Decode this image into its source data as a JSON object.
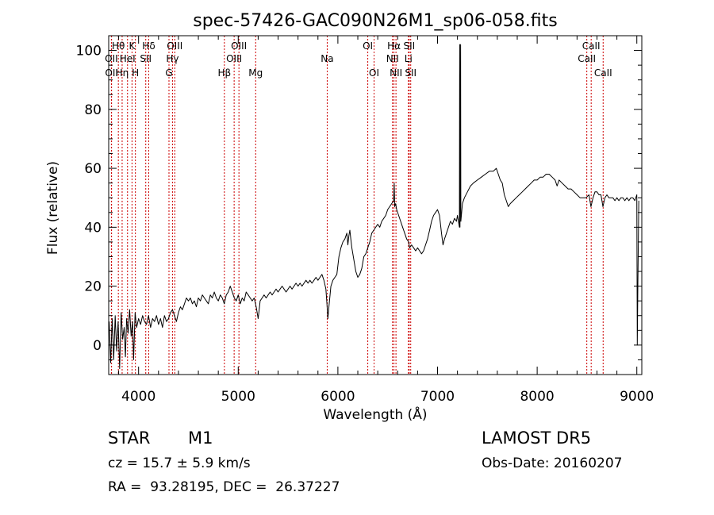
{
  "chart_data": {
    "type": "line",
    "title": "spec-57426-GAC090N26M1_sp06-058.fits",
    "xlabel": "Wavelength (Å)",
    "ylabel": "Flux (relative)",
    "xlim": [
      3700,
      9050
    ],
    "ylim": [
      -10,
      105
    ],
    "xticks": [
      4000,
      5000,
      6000,
      7000,
      8000,
      9000
    ],
    "yticks": [
      0,
      20,
      40,
      60,
      80,
      100
    ],
    "grid": false,
    "line_color": "#000000",
    "marker_color": "#cc0000",
    "spectrum_points": [
      [
        3705,
        8
      ],
      [
        3720,
        -6
      ],
      [
        3735,
        9
      ],
      [
        3750,
        -5
      ],
      [
        3765,
        10
      ],
      [
        3780,
        -2
      ],
      [
        3795,
        8
      ],
      [
        3810,
        -8
      ],
      [
        3825,
        11
      ],
      [
        3840,
        2
      ],
      [
        3855,
        6
      ],
      [
        3868,
        -4
      ],
      [
        3880,
        9
      ],
      [
        3895,
        4
      ],
      [
        3910,
        12
      ],
      [
        3925,
        3
      ],
      [
        3940,
        8
      ],
      [
        3950,
        -5
      ],
      [
        3965,
        11
      ],
      [
        3980,
        6
      ],
      [
        4000,
        9
      ],
      [
        4020,
        7
      ],
      [
        4040,
        10
      ],
      [
        4060,
        8
      ],
      [
        4080,
        7
      ],
      [
        4100,
        10
      ],
      [
        4120,
        6
      ],
      [
        4140,
        9
      ],
      [
        4160,
        8
      ],
      [
        4180,
        10
      ],
      [
        4200,
        7
      ],
      [
        4220,
        9
      ],
      [
        4240,
        6
      ],
      [
        4260,
        10
      ],
      [
        4280,
        8
      ],
      [
        4300,
        9
      ],
      [
        4320,
        11
      ],
      [
        4340,
        12
      ],
      [
        4360,
        10
      ],
      [
        4380,
        8
      ],
      [
        4400,
        11
      ],
      [
        4420,
        13
      ],
      [
        4440,
        12
      ],
      [
        4460,
        14
      ],
      [
        4480,
        16
      ],
      [
        4500,
        15
      ],
      [
        4520,
        16
      ],
      [
        4540,
        14
      ],
      [
        4560,
        15
      ],
      [
        4580,
        13
      ],
      [
        4600,
        16
      ],
      [
        4620,
        15
      ],
      [
        4640,
        17
      ],
      [
        4660,
        16
      ],
      [
        4680,
        15
      ],
      [
        4700,
        14
      ],
      [
        4720,
        17
      ],
      [
        4740,
        16
      ],
      [
        4760,
        18
      ],
      [
        4780,
        16
      ],
      [
        4800,
        15
      ],
      [
        4820,
        17
      ],
      [
        4840,
        16
      ],
      [
        4860,
        14
      ],
      [
        4880,
        17
      ],
      [
        4900,
        18
      ],
      [
        4920,
        20
      ],
      [
        4940,
        18
      ],
      [
        4960,
        16
      ],
      [
        4980,
        15
      ],
      [
        5000,
        17
      ],
      [
        5020,
        14
      ],
      [
        5040,
        16
      ],
      [
        5060,
        15
      ],
      [
        5080,
        18
      ],
      [
        5100,
        17
      ],
      [
        5120,
        16
      ],
      [
        5140,
        15
      ],
      [
        5160,
        16
      ],
      [
        5180,
        13
      ],
      [
        5200,
        9
      ],
      [
        5210,
        12
      ],
      [
        5220,
        15
      ],
      [
        5240,
        16
      ],
      [
        5260,
        17
      ],
      [
        5280,
        16
      ],
      [
        5300,
        17
      ],
      [
        5320,
        18
      ],
      [
        5340,
        17
      ],
      [
        5360,
        18
      ],
      [
        5380,
        19
      ],
      [
        5400,
        18
      ],
      [
        5420,
        19
      ],
      [
        5440,
        20
      ],
      [
        5460,
        19
      ],
      [
        5480,
        18
      ],
      [
        5500,
        19
      ],
      [
        5520,
        20
      ],
      [
        5540,
        19
      ],
      [
        5560,
        20
      ],
      [
        5580,
        21
      ],
      [
        5600,
        20
      ],
      [
        5620,
        21
      ],
      [
        5640,
        20
      ],
      [
        5660,
        21
      ],
      [
        5680,
        22
      ],
      [
        5700,
        21
      ],
      [
        5720,
        22
      ],
      [
        5740,
        21
      ],
      [
        5760,
        22
      ],
      [
        5780,
        23
      ],
      [
        5800,
        22
      ],
      [
        5820,
        23
      ],
      [
        5840,
        24
      ],
      [
        5860,
        22
      ],
      [
        5880,
        19
      ],
      [
        5890,
        14
      ],
      [
        5900,
        9
      ],
      [
        5910,
        13
      ],
      [
        5930,
        20
      ],
      [
        5950,
        22
      ],
      [
        5970,
        23
      ],
      [
        5990,
        24
      ],
      [
        6010,
        30
      ],
      [
        6030,
        33
      ],
      [
        6050,
        35
      ],
      [
        6070,
        36
      ],
      [
        6090,
        38
      ],
      [
        6100,
        34
      ],
      [
        6110,
        37
      ],
      [
        6120,
        39
      ],
      [
        6130,
        36
      ],
      [
        6140,
        33
      ],
      [
        6160,
        29
      ],
      [
        6180,
        25
      ],
      [
        6200,
        23
      ],
      [
        6220,
        24
      ],
      [
        6240,
        26
      ],
      [
        6260,
        30
      ],
      [
        6280,
        31
      ],
      [
        6300,
        33
      ],
      [
        6320,
        35
      ],
      [
        6340,
        38
      ],
      [
        6360,
        39
      ],
      [
        6380,
        40
      ],
      [
        6400,
        41
      ],
      [
        6420,
        40
      ],
      [
        6440,
        42
      ],
      [
        6460,
        43
      ],
      [
        6480,
        44
      ],
      [
        6500,
        46
      ],
      [
        6520,
        47
      ],
      [
        6540,
        48
      ],
      [
        6560,
        49
      ],
      [
        6565,
        55
      ],
      [
        6570,
        47
      ],
      [
        6580,
        48
      ],
      [
        6590,
        46
      ],
      [
        6610,
        44
      ],
      [
        6630,
        42
      ],
      [
        6650,
        40
      ],
      [
        6670,
        38
      ],
      [
        6690,
        36
      ],
      [
        6710,
        35
      ],
      [
        6720,
        33
      ],
      [
        6740,
        34
      ],
      [
        6760,
        33
      ],
      [
        6780,
        32
      ],
      [
        6800,
        33
      ],
      [
        6820,
        32
      ],
      [
        6840,
        31
      ],
      [
        6860,
        32
      ],
      [
        6880,
        34
      ],
      [
        6900,
        36
      ],
      [
        6920,
        39
      ],
      [
        6940,
        42
      ],
      [
        6960,
        44
      ],
      [
        6980,
        45
      ],
      [
        7000,
        46
      ],
      [
        7020,
        44
      ],
      [
        7040,
        38
      ],
      [
        7055,
        34
      ],
      [
        7070,
        36
      ],
      [
        7090,
        38
      ],
      [
        7110,
        40
      ],
      [
        7130,
        42
      ],
      [
        7150,
        41
      ],
      [
        7170,
        43
      ],
      [
        7190,
        42
      ],
      [
        7200,
        44
      ],
      [
        7210,
        42
      ],
      [
        7220,
        40
      ],
      [
        7222,
        102
      ],
      [
        7225,
        40
      ],
      [
        7232,
        102
      ],
      [
        7234,
        42
      ],
      [
        7250,
        48
      ],
      [
        7270,
        50
      ],
      [
        7300,
        52
      ],
      [
        7330,
        54
      ],
      [
        7360,
        55
      ],
      [
        7400,
        56
      ],
      [
        7440,
        57
      ],
      [
        7480,
        58
      ],
      [
        7520,
        59
      ],
      [
        7560,
        59
      ],
      [
        7590,
        60
      ],
      [
        7610,
        58
      ],
      [
        7630,
        56
      ],
      [
        7650,
        55
      ],
      [
        7670,
        51
      ],
      [
        7690,
        49
      ],
      [
        7710,
        47
      ],
      [
        7730,
        48
      ],
      [
        7760,
        49
      ],
      [
        7790,
        50
      ],
      [
        7820,
        51
      ],
      [
        7850,
        52
      ],
      [
        7880,
        53
      ],
      [
        7910,
        54
      ],
      [
        7940,
        55
      ],
      [
        7970,
        56
      ],
      [
        8000,
        56
      ],
      [
        8030,
        57
      ],
      [
        8060,
        57
      ],
      [
        8090,
        58
      ],
      [
        8120,
        58
      ],
      [
        8150,
        57
      ],
      [
        8180,
        56
      ],
      [
        8200,
        54
      ],
      [
        8220,
        56
      ],
      [
        8250,
        55
      ],
      [
        8280,
        54
      ],
      [
        8310,
        53
      ],
      [
        8340,
        53
      ],
      [
        8370,
        52
      ],
      [
        8400,
        51
      ],
      [
        8430,
        50
      ],
      [
        8460,
        50
      ],
      [
        8490,
        50
      ],
      [
        8520,
        51
      ],
      [
        8540,
        47
      ],
      [
        8560,
        50
      ],
      [
        8580,
        52
      ],
      [
        8600,
        52
      ],
      [
        8620,
        51
      ],
      [
        8640,
        51
      ],
      [
        8660,
        47
      ],
      [
        8680,
        50
      ],
      [
        8700,
        51
      ],
      [
        8720,
        50
      ],
      [
        8740,
        50
      ],
      [
        8760,
        50
      ],
      [
        8780,
        49
      ],
      [
        8800,
        50
      ],
      [
        8820,
        49
      ],
      [
        8840,
        50
      ],
      [
        8860,
        50
      ],
      [
        8880,
        49
      ],
      [
        8900,
        50
      ],
      [
        8920,
        49
      ],
      [
        8940,
        50
      ],
      [
        8960,
        50
      ],
      [
        8980,
        49
      ],
      [
        9000,
        51
      ],
      [
        9005,
        0
      ],
      [
        9010,
        20
      ],
      [
        9020,
        49
      ]
    ],
    "lines": [
      {
        "label": "Hθ",
        "x": 3797,
        "row": 0
      },
      {
        "label": "OII",
        "x": 3727,
        "row": 1
      },
      {
        "label": "OII",
        "x": 3729,
        "row": 2
      },
      {
        "label": "Hη",
        "x": 3835,
        "row": 2
      },
      {
        "label": "K",
        "x": 3934,
        "row": 0
      },
      {
        "label": "HeI",
        "x": 3889,
        "row": 1
      },
      {
        "label": "H",
        "x": 3968,
        "row": 2
      },
      {
        "label": "Hδ",
        "x": 4102,
        "row": 0
      },
      {
        "label": "SII",
        "x": 4072,
        "row": 1
      },
      {
        "label": "OIII",
        "x": 4363,
        "row": 0
      },
      {
        "label": "Hγ",
        "x": 4340,
        "row": 1
      },
      {
        "label": "G",
        "x": 4305,
        "row": 2
      },
      {
        "label": "Hβ",
        "x": 4861,
        "row": 2
      },
      {
        "label": "OIII",
        "x": 5007,
        "row": 0
      },
      {
        "label": "OIII",
        "x": 4959,
        "row": 1
      },
      {
        "label": "Mg",
        "x": 5175,
        "row": 2
      },
      {
        "label": "Na",
        "x": 5893,
        "row": 1
      },
      {
        "label": "OI",
        "x": 6300,
        "row": 0
      },
      {
        "label": "OI",
        "x": 6363,
        "row": 2
      },
      {
        "label": "Hα",
        "x": 6563,
        "row": 0
      },
      {
        "label": "NII",
        "x": 6548,
        "row": 1
      },
      {
        "label": "NII",
        "x": 6583,
        "row": 2
      },
      {
        "label": "SII",
        "x": 6716,
        "row": 0
      },
      {
        "label": "Li",
        "x": 6708,
        "row": 1
      },
      {
        "label": "SII",
        "x": 6731,
        "row": 2
      },
      {
        "label": "CaII",
        "x": 8542,
        "row": 0
      },
      {
        "label": "CaII",
        "x": 8498,
        "row": 1
      },
      {
        "label": "CaII",
        "x": 8662,
        "row": 2
      }
    ]
  },
  "info": {
    "class": "STAR",
    "subclass": "M1",
    "survey": "LAMOST DR5",
    "cz": "cz = 15.7 ± 5.9 km/s",
    "obs_date": "Obs-Date: 20160207",
    "coords": "RA =  93.28195, DEC =  26.37227"
  }
}
